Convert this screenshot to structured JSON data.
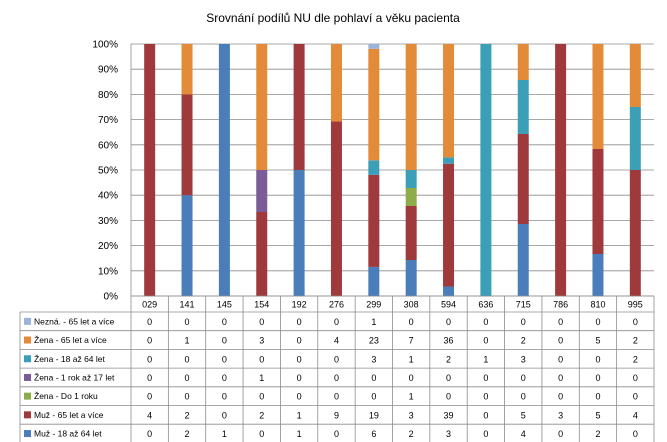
{
  "chart_data": {
    "type": "bar",
    "stacked": "percent",
    "title": "Srovnání podílů NU  dle pohlaví a věku pacienta",
    "y_ticks": [
      "0%",
      "10%",
      "20%",
      "30%",
      "40%",
      "50%",
      "60%",
      "70%",
      "80%",
      "90%",
      "100%"
    ],
    "ylim": [
      0,
      100
    ],
    "grid": true,
    "legend": "data table below chart",
    "categories": [
      "029",
      "141",
      "145",
      "154",
      "192",
      "276",
      "299",
      "308",
      "594",
      "636",
      "715",
      "786",
      "810",
      "995"
    ],
    "series": [
      {
        "name": "Muž - 18 až 64 let",
        "color": "#4a7ebb",
        "values": [
          0,
          2,
          1,
          0,
          1,
          0,
          6,
          2,
          3,
          0,
          4,
          0,
          2,
          0
        ]
      },
      {
        "name": "Muž - 65 let a více",
        "color": "#a0393b",
        "values": [
          4,
          2,
          0,
          2,
          1,
          9,
          19,
          3,
          39,
          0,
          5,
          3,
          5,
          4
        ]
      },
      {
        "name": "Žena - Do 1 roku",
        "color": "#8fac4a",
        "values": [
          0,
          0,
          0,
          0,
          0,
          0,
          0,
          1,
          0,
          0,
          0,
          0,
          0,
          0
        ]
      },
      {
        "name": "Žena - 1 rok až 17 let",
        "color": "#7a5c99",
        "values": [
          0,
          0,
          0,
          1,
          0,
          0,
          0,
          0,
          0,
          0,
          0,
          0,
          0,
          0
        ]
      },
      {
        "name": "Žena - 18 až 64 let",
        "color": "#3b9fb8",
        "values": [
          0,
          0,
          0,
          0,
          0,
          0,
          3,
          1,
          2,
          1,
          3,
          0,
          0,
          2
        ]
      },
      {
        "name": "Žena - 65 let a více",
        "color": "#e48b3a",
        "values": [
          0,
          1,
          0,
          3,
          0,
          4,
          23,
          7,
          36,
          0,
          2,
          0,
          5,
          2
        ]
      },
      {
        "name": "Nezná. - 65 let a více",
        "color": "#9db3d9",
        "values": [
          0,
          0,
          0,
          0,
          0,
          0,
          1,
          0,
          0,
          0,
          0,
          0,
          0,
          0
        ]
      }
    ],
    "table_row_order": [
      6,
      5,
      4,
      3,
      2,
      1,
      0
    ]
  }
}
